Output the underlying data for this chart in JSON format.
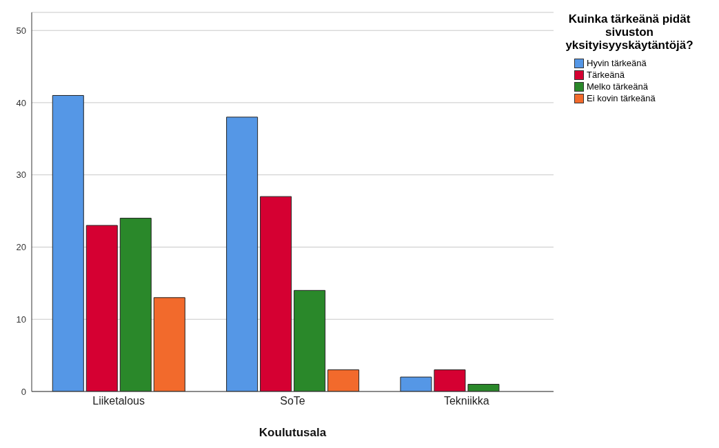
{
  "chart_data": {
    "type": "bar",
    "xlabel": "Koulutusala",
    "legend_title": "Kuinka tärkeänä pidät sivuston yksityisyyskäytäntöjä?",
    "categories": [
      "Liiketalous",
      "SoTe",
      "Tekniikka"
    ],
    "series": [
      {
        "name": "Hyvin tärkeänä",
        "color": "#5597e6",
        "values": [
          41,
          38,
          2
        ]
      },
      {
        "name": "Tärkeänä",
        "color": "#d50032",
        "values": [
          23,
          27,
          3
        ]
      },
      {
        "name": "Melko tärkeänä",
        "color": "#2a882a",
        "values": [
          24,
          14,
          1
        ]
      },
      {
        "name": "Ei kovin tärkeänä",
        "color": "#f26a2c",
        "values": [
          13,
          3,
          0
        ]
      }
    ],
    "ylim": [
      0,
      52.5
    ],
    "yticks": [
      0,
      10,
      20,
      30,
      40,
      50
    ],
    "grid": "y",
    "legend": "top right"
  }
}
